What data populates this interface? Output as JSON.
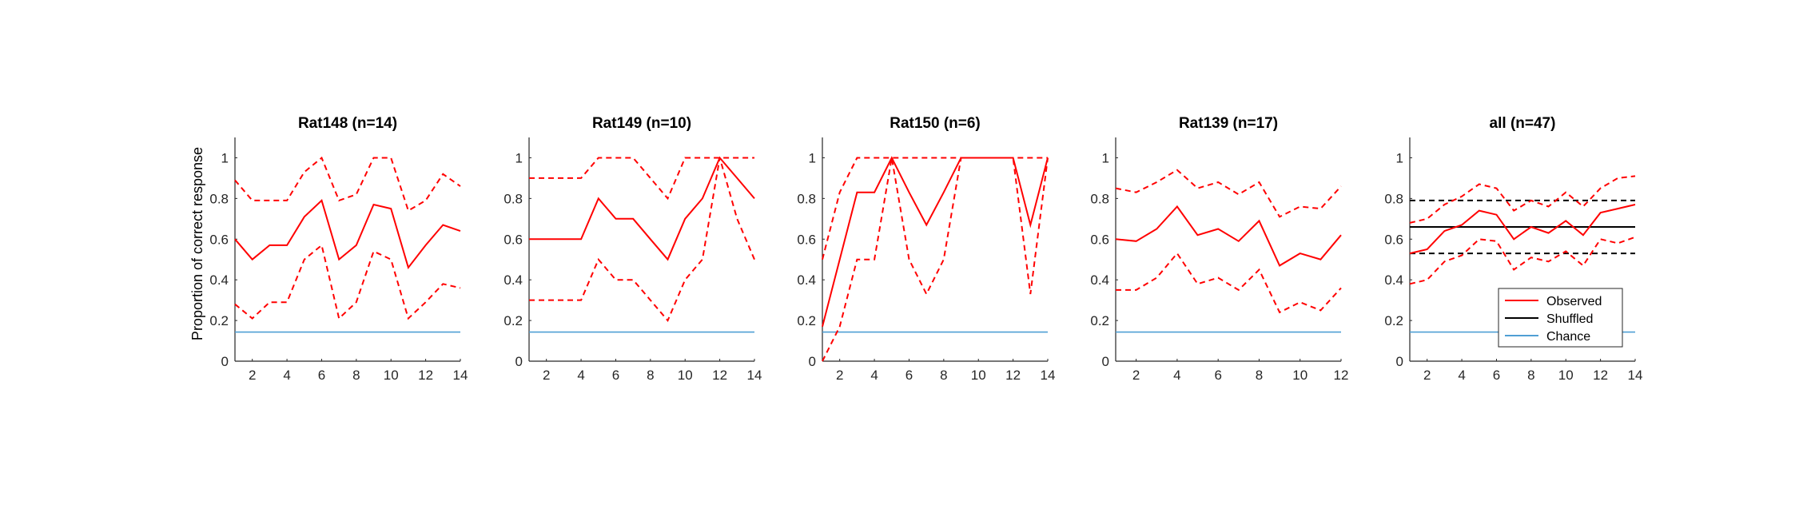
{
  "colors": {
    "observed": "#ff0000",
    "shuffled": "#000000",
    "chance": "#4f9fd4",
    "axis": "#262626"
  },
  "ylabel": "Proportion of correct response",
  "legend": {
    "observed": "Observed",
    "shuffled": "Shuffled",
    "chance": "Chance"
  },
  "chart_data": [
    {
      "type": "line",
      "title": "Rat148 (n=14)",
      "xlim": [
        1,
        14
      ],
      "ylim": [
        0,
        1.1
      ],
      "xticks": [
        2,
        4,
        6,
        8,
        10,
        12,
        14
      ],
      "yticks": [
        0,
        0.2,
        0.4,
        0.6,
        0.8,
        1
      ],
      "x": [
        1,
        2,
        3,
        4,
        5,
        6,
        7,
        8,
        9,
        10,
        11,
        12,
        13,
        14
      ],
      "observed": [
        0.6,
        0.5,
        0.57,
        0.57,
        0.71,
        0.79,
        0.5,
        0.57,
        0.77,
        0.75,
        0.46,
        0.57,
        0.67,
        0.64
      ],
      "ci_upper": [
        0.89,
        0.79,
        0.79,
        0.79,
        0.93,
        1.0,
        0.79,
        0.82,
        1.0,
        1.0,
        0.74,
        0.79,
        0.92,
        0.86
      ],
      "ci_lower": [
        0.28,
        0.21,
        0.29,
        0.29,
        0.5,
        0.57,
        0.21,
        0.29,
        0.54,
        0.5,
        0.21,
        0.29,
        0.38,
        0.36
      ],
      "chance": 0.143
    },
    {
      "type": "line",
      "title": "Rat149 (n=10)",
      "xlim": [
        1,
        14
      ],
      "ylim": [
        0,
        1.1
      ],
      "xticks": [
        2,
        4,
        6,
        8,
        10,
        12,
        14
      ],
      "yticks": [
        0,
        0.2,
        0.4,
        0.6,
        0.8,
        1
      ],
      "x": [
        1,
        2,
        3,
        4,
        5,
        6,
        7,
        8,
        9,
        10,
        11,
        12,
        13,
        14
      ],
      "observed": [
        0.6,
        0.6,
        0.6,
        0.6,
        0.8,
        0.7,
        0.7,
        0.6,
        0.5,
        0.7,
        0.8,
        1.0,
        0.9,
        0.8
      ],
      "ci_upper": [
        0.9,
        0.9,
        0.9,
        0.9,
        1.0,
        1.0,
        1.0,
        0.9,
        0.8,
        1.0,
        1.0,
        1.0,
        1.0,
        1.0
      ],
      "ci_lower": [
        0.3,
        0.3,
        0.3,
        0.3,
        0.5,
        0.4,
        0.4,
        0.3,
        0.2,
        0.4,
        0.5,
        1.0,
        0.7,
        0.5
      ],
      "chance": 0.143
    },
    {
      "type": "line",
      "title": "Rat150 (n=6)",
      "xlim": [
        1,
        14
      ],
      "ylim": [
        0,
        1.1
      ],
      "xticks": [
        2,
        4,
        6,
        8,
        10,
        12,
        14
      ],
      "yticks": [
        0,
        0.2,
        0.4,
        0.6,
        0.8,
        1
      ],
      "x": [
        1,
        2,
        3,
        4,
        5,
        6,
        7,
        8,
        9,
        10,
        11,
        12,
        13,
        14
      ],
      "observed": [
        0.17,
        0.5,
        0.83,
        0.83,
        1.0,
        0.83,
        0.67,
        0.83,
        1.0,
        1.0,
        1.0,
        1.0,
        0.67,
        1.0
      ],
      "ci_upper": [
        0.5,
        0.83,
        1.0,
        1.0,
        1.0,
        1.0,
        1.0,
        1.0,
        1.0,
        1.0,
        1.0,
        1.0,
        1.0,
        1.0
      ],
      "ci_lower": [
        0.0,
        0.17,
        0.5,
        0.5,
        1.0,
        0.5,
        0.33,
        0.5,
        1.0,
        1.0,
        1.0,
        1.0,
        0.33,
        1.0
      ],
      "chance": 0.143
    },
    {
      "type": "line",
      "title": "Rat139 (n=17)",
      "xlim": [
        1,
        12
      ],
      "ylim": [
        0,
        1.1
      ],
      "xticks": [
        2,
        4,
        6,
        8,
        10,
        12
      ],
      "yticks": [
        0,
        0.2,
        0.4,
        0.6,
        0.8,
        1
      ],
      "x": [
        1,
        2,
        3,
        4,
        5,
        6,
        7,
        8,
        9,
        10,
        11,
        12
      ],
      "observed": [
        0.6,
        0.59,
        0.65,
        0.76,
        0.62,
        0.65,
        0.59,
        0.69,
        0.47,
        0.53,
        0.5,
        0.62
      ],
      "ci_upper": [
        0.85,
        0.83,
        0.88,
        0.94,
        0.85,
        0.88,
        0.82,
        0.88,
        0.71,
        0.76,
        0.75,
        0.86
      ],
      "ci_lower": [
        0.35,
        0.35,
        0.41,
        0.53,
        0.38,
        0.41,
        0.35,
        0.45,
        0.24,
        0.29,
        0.25,
        0.36
      ],
      "chance": 0.143
    },
    {
      "type": "line",
      "title": "all (n=47)",
      "xlim": [
        1,
        14
      ],
      "ylim": [
        0,
        1.1
      ],
      "xticks": [
        2,
        4,
        6,
        8,
        10,
        12,
        14
      ],
      "yticks": [
        0,
        0.2,
        0.4,
        0.6,
        0.8,
        1
      ],
      "x": [
        1,
        2,
        3,
        4,
        5,
        6,
        7,
        8,
        9,
        10,
        11,
        12,
        13,
        14
      ],
      "observed": [
        0.53,
        0.55,
        0.64,
        0.67,
        0.74,
        0.72,
        0.6,
        0.66,
        0.63,
        0.69,
        0.62,
        0.73,
        0.75,
        0.77
      ],
      "ci_upper": [
        0.68,
        0.7,
        0.77,
        0.81,
        0.87,
        0.85,
        0.74,
        0.79,
        0.76,
        0.83,
        0.76,
        0.85,
        0.9,
        0.91
      ],
      "ci_lower": [
        0.38,
        0.4,
        0.49,
        0.52,
        0.6,
        0.59,
        0.45,
        0.51,
        0.49,
        0.54,
        0.47,
        0.6,
        0.58,
        0.61
      ],
      "shuffled": 0.66,
      "shuffled_upper": 0.79,
      "shuffled_lower": 0.53,
      "chance": 0.143,
      "legend_position": "bottom-right"
    }
  ]
}
